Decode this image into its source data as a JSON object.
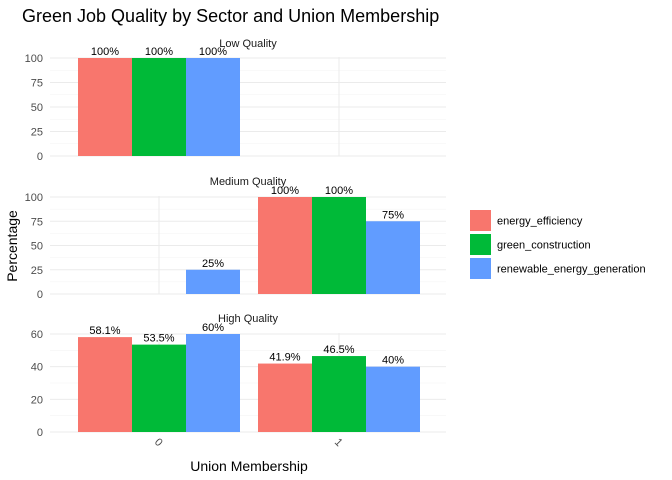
{
  "chart_data": {
    "type": "bar",
    "title": "Green Job Quality by Sector and Union Membership",
    "xlabel": "Union Membership",
    "ylabel": "Percentage",
    "categories": [
      "0",
      "1"
    ],
    "legend": {
      "position": "right",
      "entries": [
        "energy_efficiency",
        "green_construction",
        "renewable_energy_generation"
      ]
    },
    "colors": {
      "energy_efficiency": "#F8766D",
      "green_construction": "#00BA38",
      "renewable_energy_generation": "#619CFF"
    },
    "grid": true,
    "facets": [
      {
        "label": "Low Quality",
        "ylim": [
          0,
          100
        ],
        "yticks": [
          0,
          25,
          50,
          75,
          100
        ],
        "series": [
          {
            "name": "energy_efficiency",
            "values": [
              100,
              null
            ],
            "labels": [
              "100%",
              ""
            ]
          },
          {
            "name": "green_construction",
            "values": [
              100,
              null
            ],
            "labels": [
              "100%",
              ""
            ]
          },
          {
            "name": "renewable_energy_generation",
            "values": [
              100,
              null
            ],
            "labels": [
              "100%",
              ""
            ]
          }
        ]
      },
      {
        "label": "Medium Quality",
        "ylim": [
          0,
          100
        ],
        "yticks": [
          0,
          25,
          50,
          75,
          100
        ],
        "series": [
          {
            "name": "energy_efficiency",
            "values": [
              null,
              100
            ],
            "labels": [
              "",
              "100%"
            ]
          },
          {
            "name": "green_construction",
            "values": [
              null,
              100
            ],
            "labels": [
              "",
              "100%"
            ]
          },
          {
            "name": "renewable_energy_generation",
            "values": [
              25,
              75
            ],
            "labels": [
              "25%",
              "75%"
            ]
          }
        ]
      },
      {
        "label": "High Quality",
        "ylim": [
          0,
          60
        ],
        "yticks": [
          0,
          20,
          40,
          60
        ],
        "series": [
          {
            "name": "energy_efficiency",
            "values": [
              58.1,
              41.9
            ],
            "labels": [
              "58.1%",
              "41.9%"
            ]
          },
          {
            "name": "green_construction",
            "values": [
              53.5,
              46.5
            ],
            "labels": [
              "53.5%",
              "46.5%"
            ]
          },
          {
            "name": "renewable_energy_generation",
            "values": [
              60,
              40
            ],
            "labels": [
              "60%",
              "40%"
            ]
          }
        ]
      }
    ]
  }
}
